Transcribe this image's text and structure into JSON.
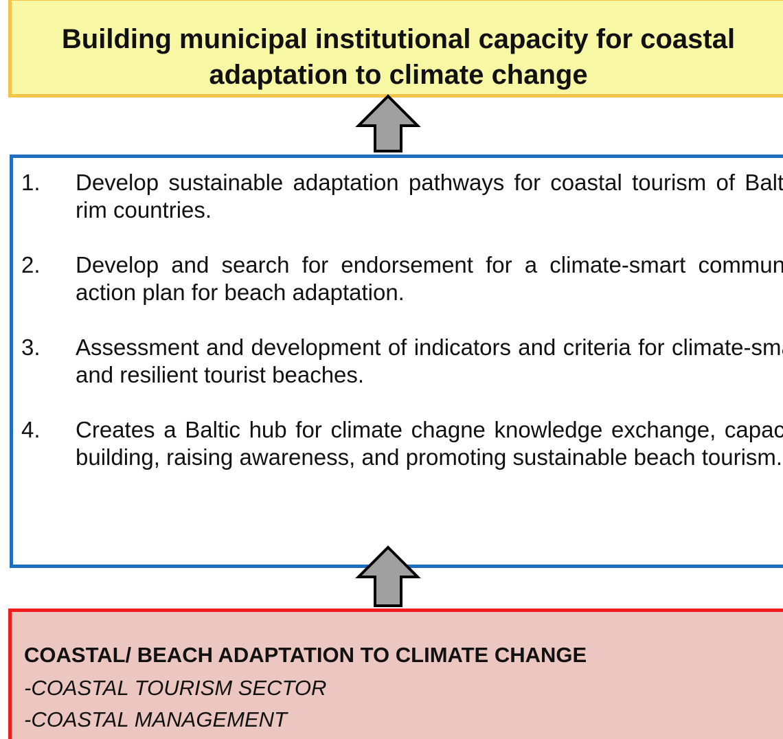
{
  "header": {
    "title": "Building municipal institutional capacity for coastal adaptation to climate change"
  },
  "items": [
    {
      "number": "1.",
      "text": "Develop sustainable adaptation pathways for coastal tourism of Baltic-rim countries."
    },
    {
      "number": "2.",
      "text": "Develop and search for endorsement for a climate-smart community action plan for beach adaptation."
    },
    {
      "number": "3.",
      "text": "Assessment and development of indicators and criteria for climate-smart and resilient tourist beaches."
    },
    {
      "number": "4.",
      "text": "Creates a Baltic hub for climate chagne knowledge exchange, capacity building, raising awareness, and promoting sustainable beach tourism."
    }
  ],
  "footer": {
    "heading": "COASTAL/ BEACH  ADAPTATION TO CLIMATE CHANGE",
    "lines": [
      "-COASTAL TOURISM SECTOR",
      "-COASTAL MANAGEMENT"
    ]
  }
}
